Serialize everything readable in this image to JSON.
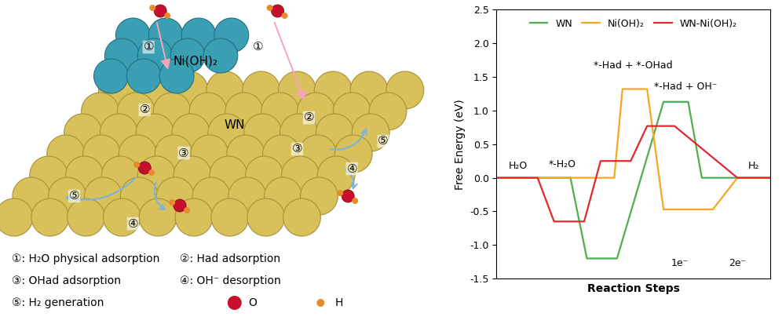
{
  "diagram": {
    "labels": {
      "cluster": "Ni(OH)₂",
      "substrate": "WN"
    },
    "markers": [
      "①",
      "②",
      "③",
      "④",
      "⑤"
    ],
    "steps": [
      "①: H₂O physical adsorption",
      "②: Had adsorption",
      "③: OHad adsorption",
      "④: OH⁻ desorption",
      "⑤: H₂ generation"
    ],
    "atom_key": [
      {
        "label": "O",
        "color": "#c8102e"
      },
      {
        "label": "H",
        "color": "#e8892b"
      }
    ]
  },
  "chart_data": {
    "type": "line",
    "x_label": "Reaction Steps",
    "y_label": "Free Energy (eV)",
    "xlim": [
      0,
      10
    ],
    "xticks": [],
    "tick_labels": "y",
    "ylim": [
      -1.5,
      2.5
    ],
    "yticks": [
      {
        "value": -1.5,
        "label": "-1.5"
      },
      {
        "value": -1.0,
        "label": "-1.0"
      },
      {
        "value": -0.5,
        "label": "-0.5"
      },
      {
        "value": 0.0,
        "label": "0.0"
      },
      0.5,
      {
        "value": 1.0,
        "label": "1.0"
      },
      1.5,
      {
        "value": 2.0,
        "label": "2.0"
      },
      2.5
    ],
    "legend": "upper center",
    "annotations": [
      "H₂O",
      "*-H₂O",
      "*-Had + *-OHad",
      "*-Had + OH⁻",
      "H₂",
      "1e⁻",
      "2e⁻"
    ],
    "series": [
      {
        "name": "WN",
        "color": "#4caf50",
        "x": [
          0,
          2.7,
          3.3,
          4.4,
          6.1,
          7.0,
          7.5,
          10
        ],
        "values": [
          0,
          0,
          -1.2,
          -1.2,
          1.13,
          1.13,
          0,
          0
        ]
      },
      {
        "name": "Ni(OH)₂",
        "color": "#f5a623",
        "x": [
          0,
          4.3,
          4.6,
          5.5,
          6.1,
          7.9,
          8.8,
          10
        ],
        "values": [
          0,
          0,
          1.32,
          1.32,
          -0.47,
          -0.47,
          0,
          0
        ]
      },
      {
        "name": "WN-Ni(OH)₂",
        "color": "#e0282e",
        "x": [
          0,
          1.5,
          2.1,
          3.2,
          3.8,
          4.9,
          5.5,
          6.5,
          8.8,
          10
        ],
        "values": [
          0,
          0,
          -0.65,
          -0.65,
          0.25,
          0.25,
          0.77,
          0.77,
          0,
          0
        ]
      }
    ]
  }
}
